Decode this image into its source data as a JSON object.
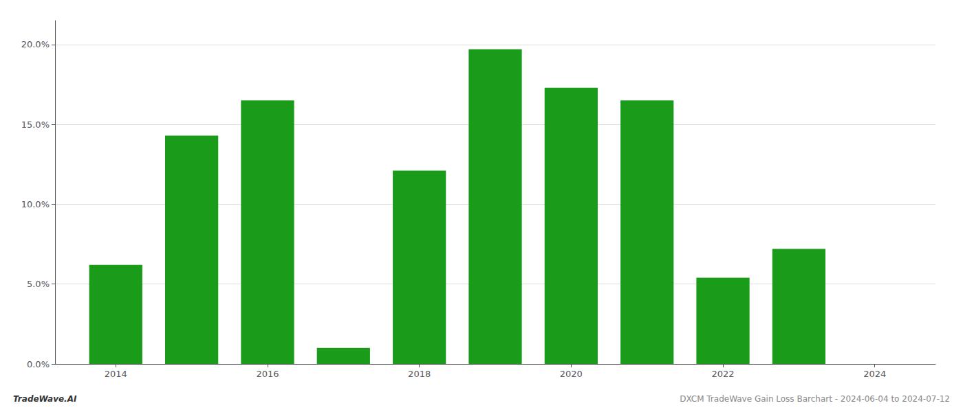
{
  "chart_data": {
    "type": "bar",
    "title": "DXCM TradeWave Gain Loss Barchart - 2024-06-04 to 2024-07-12",
    "annotations": [
      "TradeWave.AI"
    ],
    "x": [
      2014,
      2015,
      2016,
      2017,
      2018,
      2019,
      2020,
      2021,
      2022,
      2023,
      2024
    ],
    "values": [
      0.062,
      0.143,
      0.165,
      0.01,
      0.121,
      0.197,
      0.173,
      0.165,
      0.054,
      0.072,
      0.0
    ],
    "color": "#1a9c1a",
    "xlim": [
      2013.2,
      2024.8
    ],
    "xticks": [
      2014,
      2016,
      2018,
      2020,
      2022,
      2024
    ],
    "ylim": [
      0,
      0.215
    ],
    "yticks": [
      {
        "value": 0.0,
        "label": "0.0%"
      },
      {
        "value": 0.05,
        "label": "5.0%"
      },
      {
        "value": 0.1,
        "label": "10.0%"
      },
      {
        "value": 0.15,
        "label": "15.0%"
      },
      {
        "value": 0.2,
        "label": "20.0%"
      }
    ],
    "grid": true
  }
}
